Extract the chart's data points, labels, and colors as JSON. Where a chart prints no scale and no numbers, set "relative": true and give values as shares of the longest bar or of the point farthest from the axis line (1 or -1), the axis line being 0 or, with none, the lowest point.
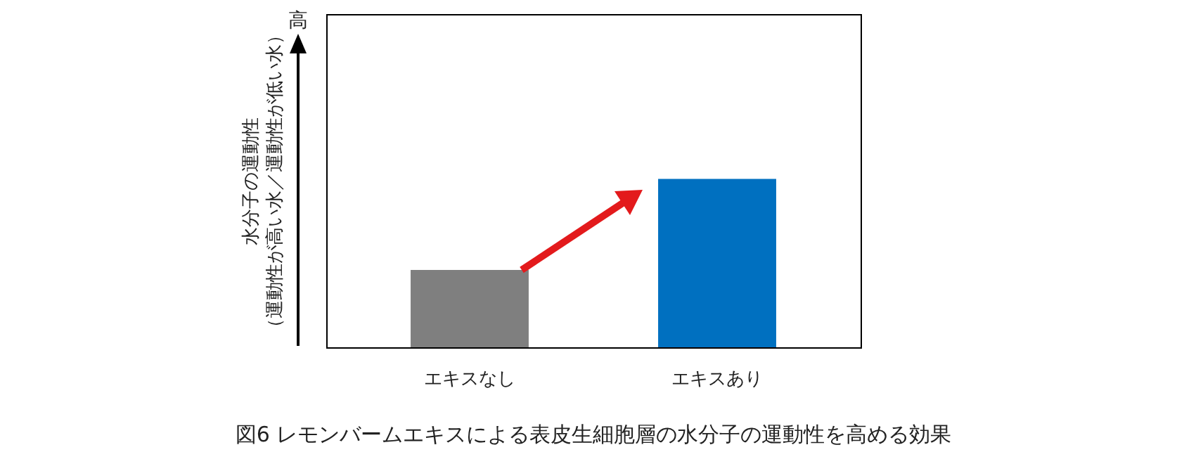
{
  "chart_data": {
    "type": "bar",
    "title": "図6 レモンバームエキスによる表皮生細胞層の水分子の運動性を高める効果",
    "ylabel": "水分子の運動性（運動性が高い水／運動性が低い水）",
    "categories": [
      "エキスなし",
      "エキスあり"
    ],
    "values": [
      0.46,
      1
    ],
    "colors": [
      "#7f7f7f",
      "#0070c0"
    ],
    "relative": true,
    "annotations": [
      "高"
    ]
  }
}
